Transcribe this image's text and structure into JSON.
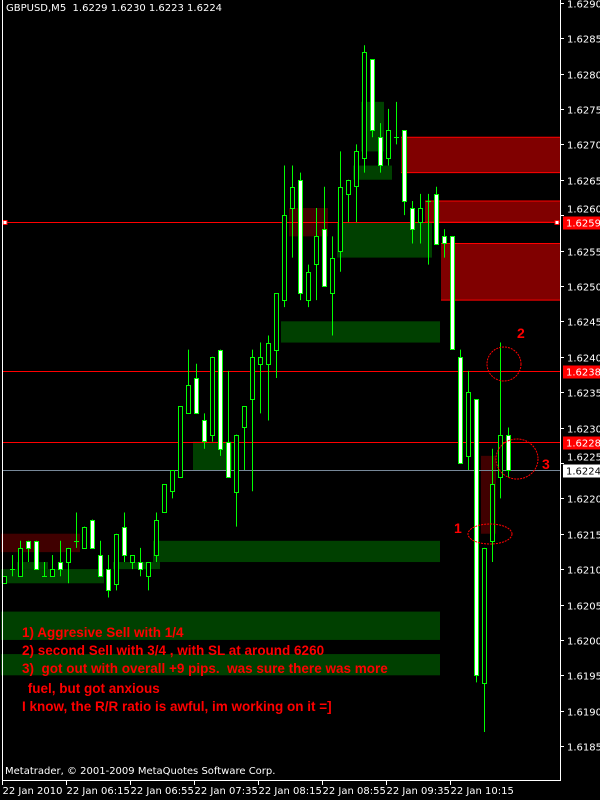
{
  "header": {
    "symbol": "GBPUSD,M5",
    "ohlc": "1.6229 1.6230 1.6223 1.6224"
  },
  "copyright": "Metatrader, © 2001-2009 MetaQuotes Software Corp.",
  "notes": [
    "1) Aggresive Sell with 1/4",
    "2) second Sell with 3/4 , with SL at around 6260",
    "3)  got out with overall +9 pips.  was sure there was more",
    " fuel, but got anxious",
    "I know, the R/R ratio is awful, im working on it =]"
  ],
  "markers": [
    "1",
    "2",
    "3"
  ],
  "colors": {
    "background": "#000000",
    "axis": "#ffffff",
    "candle_outline": "#00ff00",
    "bear_body": "#ffffff",
    "bull_body": "#000000",
    "level_line": "#ff0000",
    "bid_line": "#778899",
    "zone_green": "#004000",
    "zone_red_dark": "#400000",
    "zone_red": "#800000"
  },
  "chart_data": {
    "type": "candlestick",
    "symbol": "GBPUSD",
    "timeframe": "M5",
    "ylim": [
      1.6185,
      1.629
    ],
    "yticks": [
      "1.6290",
      "1.6285",
      "1.6280",
      "1.6275",
      "1.6270",
      "1.6265",
      "1.6260",
      "1.6255",
      "1.6250",
      "1.6245",
      "1.6240",
      "1.6235",
      "1.6230",
      "1.6225",
      "1.6220",
      "1.6215",
      "1.6210",
      "1.6205",
      "1.6200",
      "1.6195",
      "1.6190",
      "1.6185"
    ],
    "xticks": [
      {
        "time": "05:35",
        "label": "22 Jan 2010"
      },
      {
        "time": "06:15",
        "label": "22 Jan 06:15"
      },
      {
        "time": "06:55",
        "label": "22 Jan 06:55"
      },
      {
        "time": "07:35",
        "label": "22 Jan 07:35"
      },
      {
        "time": "08:15",
        "label": "22 Jan 08:15"
      },
      {
        "time": "08:55",
        "label": "22 Jan 08:55"
      },
      {
        "time": "09:35",
        "label": "22 Jan 09:35"
      },
      {
        "time": "10:15",
        "label": "22 Jan 10:15"
      }
    ],
    "candles_columns": [
      "time",
      "open",
      "high",
      "low",
      "close"
    ],
    "candles": [
      [
        "05:35",
        1.6208,
        1.6209,
        1.6208,
        1.6209
      ],
      [
        "05:40",
        1.621,
        1.6212,
        1.6209,
        1.621
      ],
      [
        "05:45",
        1.6209,
        1.6214,
        1.6209,
        1.6213
      ],
      [
        "05:50",
        1.6214,
        1.6214,
        1.6211,
        1.6213
      ],
      [
        "05:55",
        1.6214,
        1.6214,
        1.621,
        1.621
      ],
      [
        "06:00",
        1.6209,
        1.6211,
        1.6209,
        1.6209
      ],
      [
        "06:05",
        1.6209,
        1.6212,
        1.6209,
        1.621
      ],
      [
        "06:10",
        1.6211,
        1.6214,
        1.6209,
        1.621
      ],
      [
        "06:15",
        1.6211,
        1.6213,
        1.6208,
        1.6213
      ],
      [
        "06:20",
        1.6214,
        1.6218,
        1.6213,
        1.6214
      ],
      [
        "06:25",
        1.6213,
        1.6216,
        1.6213,
        1.6216
      ],
      [
        "06:30",
        1.6217,
        1.6217,
        1.6213,
        1.6213
      ],
      [
        "06:35",
        1.6212,
        1.6214,
        1.6209,
        1.6209
      ],
      [
        "06:40",
        1.621,
        1.6212,
        1.6206,
        1.6207
      ],
      [
        "06:45",
        1.6208,
        1.6215,
        1.6207,
        1.6215
      ],
      [
        "06:50",
        1.6216,
        1.6218,
        1.6211,
        1.6212
      ],
      [
        "06:55",
        1.6211,
        1.6212,
        1.621,
        1.6212
      ],
      [
        "07:00",
        1.6211,
        1.6213,
        1.6209,
        1.621
      ],
      [
        "07:05",
        1.6209,
        1.6211,
        1.6207,
        1.6211
      ],
      [
        "07:10",
        1.6212,
        1.6218,
        1.6211,
        1.6217
      ],
      [
        "07:15",
        1.6218,
        1.6222,
        1.6218,
        1.6222
      ],
      [
        "07:20",
        1.6221,
        1.6224,
        1.622,
        1.6224
      ],
      [
        "07:25",
        1.6223,
        1.6233,
        1.6223,
        1.6233
      ],
      [
        "07:30",
        1.6232,
        1.6241,
        1.6232,
        1.6236
      ],
      [
        "07:35",
        1.6237,
        1.6239,
        1.6232,
        1.6232
      ],
      [
        "07:40",
        1.6231,
        1.6232,
        1.6227,
        1.6228
      ],
      [
        "07:45",
        1.6229,
        1.624,
        1.6228,
        1.624
      ],
      [
        "07:50",
        1.6241,
        1.6241,
        1.6226,
        1.6227
      ],
      [
        "07:55",
        1.6228,
        1.6238,
        1.6223,
        1.6223
      ],
      [
        "08:00",
        1.6221,
        1.6229,
        1.6216,
        1.6229
      ],
      [
        "08:05",
        1.623,
        1.6233,
        1.6224,
        1.6233
      ],
      [
        "08:10",
        1.6234,
        1.6241,
        1.6221,
        1.624
      ],
      [
        "08:15",
        1.6239,
        1.6242,
        1.6232,
        1.624
      ],
      [
        "08:20",
        1.6239,
        1.6243,
        1.6231,
        1.6242
      ],
      [
        "08:25",
        1.6241,
        1.6249,
        1.6237,
        1.6249
      ],
      [
        "08:30",
        1.6248,
        1.6267,
        1.6247,
        1.626
      ],
      [
        "08:35",
        1.6261,
        1.6267,
        1.6254,
        1.6264
      ],
      [
        "08:40",
        1.6265,
        1.6266,
        1.6248,
        1.6249
      ],
      [
        "08:45",
        1.6248,
        1.6253,
        1.6247,
        1.6252
      ],
      [
        "08:50",
        1.6253,
        1.6261,
        1.6248,
        1.6257
      ],
      [
        "08:55",
        1.6258,
        1.6264,
        1.625,
        1.625
      ],
      [
        "09:00",
        1.6249,
        1.6257,
        1.6243,
        1.6254
      ],
      [
        "09:05",
        1.6255,
        1.6269,
        1.6252,
        1.6264
      ],
      [
        "09:10",
        1.6263,
        1.6265,
        1.6259,
        1.6265
      ],
      [
        "09:15",
        1.6264,
        1.627,
        1.6259,
        1.6269
      ],
      [
        "09:20",
        1.6268,
        1.6284,
        1.6266,
        1.6283
      ],
      [
        "09:25",
        1.6282,
        1.6282,
        1.6271,
        1.6272
      ],
      [
        "09:30",
        1.6271,
        1.6273,
        1.6266,
        1.6267
      ],
      [
        "09:35",
        1.6268,
        1.6275,
        1.6267,
        1.6272
      ],
      [
        "09:40",
        1.6271,
        1.6276,
        1.627,
        1.6271
      ],
      [
        "09:45",
        1.6272,
        1.6272,
        1.626,
        1.6262
      ],
      [
        "09:50",
        1.6261,
        1.6262,
        1.6256,
        1.6258
      ],
      [
        "09:55",
        1.6259,
        1.6263,
        1.6256,
        1.6261
      ],
      [
        "10:00",
        1.6262,
        1.6263,
        1.6253,
        1.6262
      ],
      [
        "10:05",
        1.6263,
        1.6264,
        1.6256,
        1.6256
      ],
      [
        "10:10",
        1.6257,
        1.6258,
        1.6254,
        1.6256
      ],
      [
        "10:15",
        1.6257,
        1.6257,
        1.6241,
        1.6241
      ],
      [
        "10:20",
        1.624,
        1.6241,
        1.6225,
        1.6225
      ],
      [
        "10:25",
        1.6226,
        1.6238,
        1.6224,
        1.6235
      ],
      [
        "10:30",
        1.6234,
        1.6234,
        1.6194,
        1.6195
      ],
      [
        "10:35",
        1.6194,
        1.6213,
        1.6187,
        1.6213
      ],
      [
        "10:40",
        1.6214,
        1.6227,
        1.6211,
        1.6222
      ],
      [
        "10:45",
        1.6223,
        1.6242,
        1.622,
        1.6229
      ],
      [
        "10:50",
        1.6229,
        1.623,
        1.6223,
        1.6224
      ]
    ],
    "levels": [
      {
        "price": "1.6259",
        "kind": "line",
        "color": "#ff0000"
      },
      {
        "price": "1.6238",
        "kind": "line",
        "color": "#ff0000"
      },
      {
        "price": "1.6228",
        "kind": "line",
        "color": "#ff0000"
      },
      {
        "price": "1.6224",
        "kind": "bid",
        "color": "#778899"
      }
    ],
    "zones": [
      {
        "from": "05:35",
        "to": "06:20",
        "top": 1.6215,
        "bottom": 1.62124,
        "color": "#400000"
      },
      {
        "from": "05:35",
        "to": "06:35",
        "top": 1.621,
        "bottom": 1.6208,
        "color": "#004000"
      },
      {
        "from": "05:45",
        "to": "06:00",
        "top": 1.6211,
        "bottom": 1.621,
        "color": "#004000"
      },
      {
        "from": "06:45",
        "to": "07:10",
        "top": 1.6211,
        "bottom": 1.621,
        "color": "#004000"
      },
      {
        "from": "07:10",
        "to": "10:05",
        "top": 1.6214,
        "bottom": 1.6211,
        "color": "#004000"
      },
      {
        "from": "05:35",
        "to": "10:05",
        "top": 1.6204,
        "bottom": 1.62,
        "color": "#004000"
      },
      {
        "from": "05:35",
        "to": "10:05",
        "top": 1.6198,
        "bottom": 1.6195,
        "color": "#004000"
      },
      {
        "from": "07:35",
        "to": "07:55",
        "top": 1.6228,
        "bottom": 1.6224,
        "color": "#004000"
      },
      {
        "from": "08:30",
        "to": "10:05",
        "top": 1.6245,
        "bottom": 1.6242,
        "color": "#004000"
      },
      {
        "from": "09:05",
        "to": "10:00",
        "top": 1.6259,
        "bottom": 1.6254,
        "color": "#004000"
      },
      {
        "from": "09:15",
        "to": "09:35",
        "top": 1.6267,
        "bottom": 1.6265,
        "color": "#004000"
      },
      {
        "from": "09:20",
        "to": "09:30",
        "top": 1.6276,
        "bottom": 1.6269,
        "color": "#004000"
      },
      {
        "from": "08:35",
        "to": "08:55",
        "top": 1.6261,
        "bottom": 1.6257,
        "color": "#400000"
      },
      {
        "from": "09:45",
        "to": null,
        "top": 1.6271,
        "bottom": 1.6266,
        "color": "#800000"
      },
      {
        "from": "10:00",
        "to": null,
        "top": 1.6262,
        "bottom": 1.6259,
        "color": "#800000"
      },
      {
        "from": "10:10",
        "to": null,
        "top": 1.6256,
        "bottom": 1.6248,
        "color": "#800000"
      },
      {
        "from": "10:35",
        "to": "10:40",
        "top": 1.6226,
        "bottom": 1.6215,
        "color": "#400000"
      }
    ]
  }
}
